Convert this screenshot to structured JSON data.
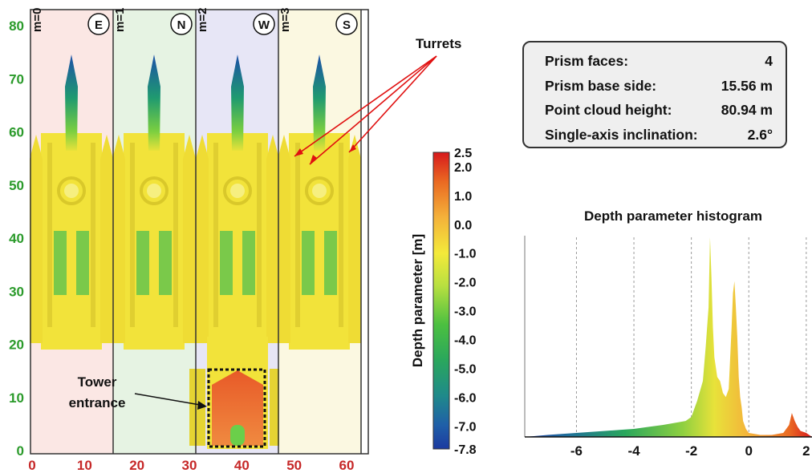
{
  "facade": {
    "y_ticks": [
      "80",
      "70",
      "60",
      "50",
      "40",
      "30",
      "20",
      "10",
      "0"
    ],
    "x_ticks": [
      "0",
      "10",
      "20",
      "30",
      "40",
      "50",
      "60"
    ],
    "panels": [
      {
        "index": "m=0",
        "face": "E"
      },
      {
        "index": "m=1",
        "face": "N"
      },
      {
        "index": "m=2",
        "face": "W"
      },
      {
        "index": "m=3",
        "face": "S"
      }
    ],
    "annotations": {
      "turrets": "Turrets",
      "tower_line1": "Tower",
      "tower_line2": "entrance"
    }
  },
  "colorbar": {
    "label": "Depth parameter [m]",
    "ticks": [
      "2.5",
      "2.0",
      "1.0",
      "0.0",
      "-1.0",
      "-2.0",
      "-3.0",
      "-4.0",
      "-5.0",
      "-6.0",
      "-7.0",
      "-7.8"
    ]
  },
  "info": [
    {
      "label": "Prism faces:",
      "value": "4"
    },
    {
      "label": "Prism base side:",
      "value": "15.56 m"
    },
    {
      "label": "Point cloud height:",
      "value": "80.94 m"
    },
    {
      "label": "Single-axis inclination:",
      "value": "2.6°"
    }
  ],
  "histogram": {
    "title": "Depth parameter histogram",
    "x_ticks": [
      "-6",
      "-4",
      "-2",
      "0",
      "2"
    ]
  },
  "colors": {
    "y_axis_text": "#2a9a2a",
    "x_axis_text": "#c62828",
    "callout_line": "#e01010",
    "panel_e": "#fbe7e4",
    "panel_n": "#e6f3e3",
    "panel_w": "#e7e6f6",
    "panel_s": "#fbf8e1",
    "building": "#f2e33a"
  },
  "chart_data": {
    "type": "area",
    "title": "Depth parameter histogram",
    "xlabel": "",
    "ylabel": "",
    "xlim": [
      -7.8,
      2.2
    ],
    "x_ticks": [
      -6,
      -4,
      -2,
      0,
      2
    ],
    "grid": "dotted vertical lines at x ticks",
    "series": [
      {
        "x": [
          -7.8,
          -7.0,
          -6.5,
          -6.0,
          -5.5,
          -5.0,
          -4.5,
          -4.0,
          -3.5,
          -3.0,
          -2.6,
          -2.2,
          -2.0,
          -1.8,
          -1.6,
          -1.5,
          -1.4,
          -1.35,
          -1.3,
          -1.25,
          -1.2,
          -1.1,
          -1.0,
          -0.9,
          -0.8,
          -0.7,
          -0.6,
          -0.55,
          -0.5,
          -0.45,
          -0.4,
          -0.35,
          -0.3,
          -0.25,
          -0.2,
          -0.1,
          0.0,
          0.4,
          0.8,
          1.2,
          1.4,
          1.5,
          1.6,
          1.7,
          1.8,
          2.0,
          2.2
        ],
        "y": [
          0,
          1,
          1.5,
          2,
          2.5,
          3,
          3.5,
          4,
          5,
          6,
          7,
          8,
          10,
          18,
          28,
          45,
          65,
          100,
          80,
          55,
          40,
          30,
          28,
          22,
          20,
          24,
          55,
          72,
          78,
          65,
          50,
          30,
          20,
          15,
          8,
          4,
          2,
          1,
          1,
          2,
          6,
          12,
          8,
          5,
          3,
          2,
          0
        ]
      }
    ]
  }
}
